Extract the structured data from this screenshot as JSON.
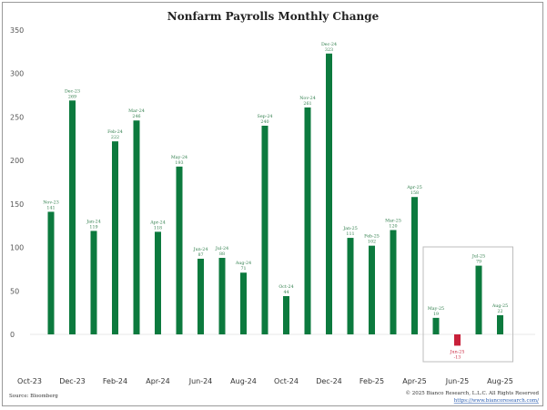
{
  "chart_data": {
    "type": "bar",
    "title": "Nonfarm Payrolls Monthly Change",
    "xlabel": "",
    "ylabel": "",
    "ylim": [
      -25,
      350
    ],
    "yticks": [
      0,
      50,
      100,
      150,
      200,
      250,
      300,
      350
    ],
    "grid": false,
    "categories": [
      "Nov-23",
      "Dec-23",
      "Jan-24",
      "Feb-24",
      "Mar-24",
      "Apr-24",
      "May-24",
      "Jun-24",
      "Jul-24",
      "Aug-24",
      "Sep-24",
      "Oct-24",
      "Nov-24",
      "Dec-24",
      "Jan-25",
      "Feb-25",
      "Mar-25",
      "Apr-25",
      "May-25",
      "Jun-25",
      "Jul-25",
      "Aug-25"
    ],
    "values": [
      141,
      269,
      119,
      222,
      246,
      118,
      193,
      87,
      88,
      71,
      240,
      44,
      261,
      323,
      111,
      102,
      120,
      158,
      19,
      -13,
      79,
      22
    ],
    "value_labels": [
      "141",
      "269",
      "119",
      "222",
      "246",
      "118",
      "193",
      "87",
      "88",
      "71",
      "240",
      "44",
      "261",
      "323",
      "111",
      "102",
      "120",
      "158",
      "19",
      "-13",
      "79",
      "22"
    ],
    "x_axis_labels": [
      "Oct-23",
      "Dec-23",
      "Feb-24",
      "Apr-24",
      "Jun-24",
      "Aug-24",
      "Oct-24",
      "Dec-24",
      "Feb-25",
      "Apr-25",
      "Jun-25",
      "Aug-25"
    ],
    "colors": {
      "positive": "#0c7a3e",
      "negative": "#c8203a",
      "label_positive": "#2e7d4a",
      "label_negative": "#c8203a"
    },
    "highlight_box": {
      "from": "May-25",
      "to": "Aug-25",
      "color": "#bdbdbd"
    },
    "source": "Source: Bloomberg",
    "copyright": "© 2025 Bianco Research, L.L.C. All Rights Reserved",
    "url": "https://www.biancoresearch.com/"
  }
}
